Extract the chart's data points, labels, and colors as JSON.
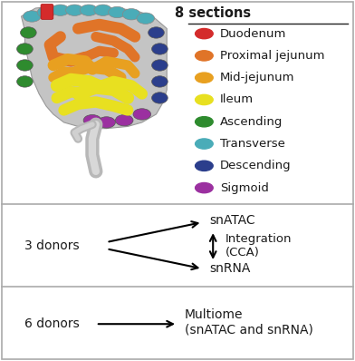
{
  "bg_color": "#ffffff",
  "sections_title": "8 sections",
  "legend_items": [
    {
      "label": "Duodenum",
      "color": "#d42b2b"
    },
    {
      "label": "Proximal jejunum",
      "color": "#e07428"
    },
    {
      "label": "Mid-jejunum",
      "color": "#e8a020"
    },
    {
      "label": "Ileum",
      "color": "#e8e020"
    },
    {
      "label": "Ascending",
      "color": "#2e8b2e"
    },
    {
      "label": "Transverse",
      "color": "#4aacb8"
    },
    {
      "label": "Descending",
      "color": "#2b3e8c"
    },
    {
      "label": "Sigmoid",
      "color": "#9b30a0"
    }
  ],
  "panel2_left_text": "3 donors",
  "panel2_top_right": "snATAC",
  "panel2_bottom_right": "snRNA",
  "panel2_integration": "Integration\n(CCA)",
  "panel3_left_text": "6 donors",
  "panel3_right_text": "Multiome\n(snATAC and snRNA)",
  "text_color": "#1a1a1a",
  "font_size_legend_title": 10.5,
  "font_size_legend": 9.5,
  "font_size_panel": 10
}
